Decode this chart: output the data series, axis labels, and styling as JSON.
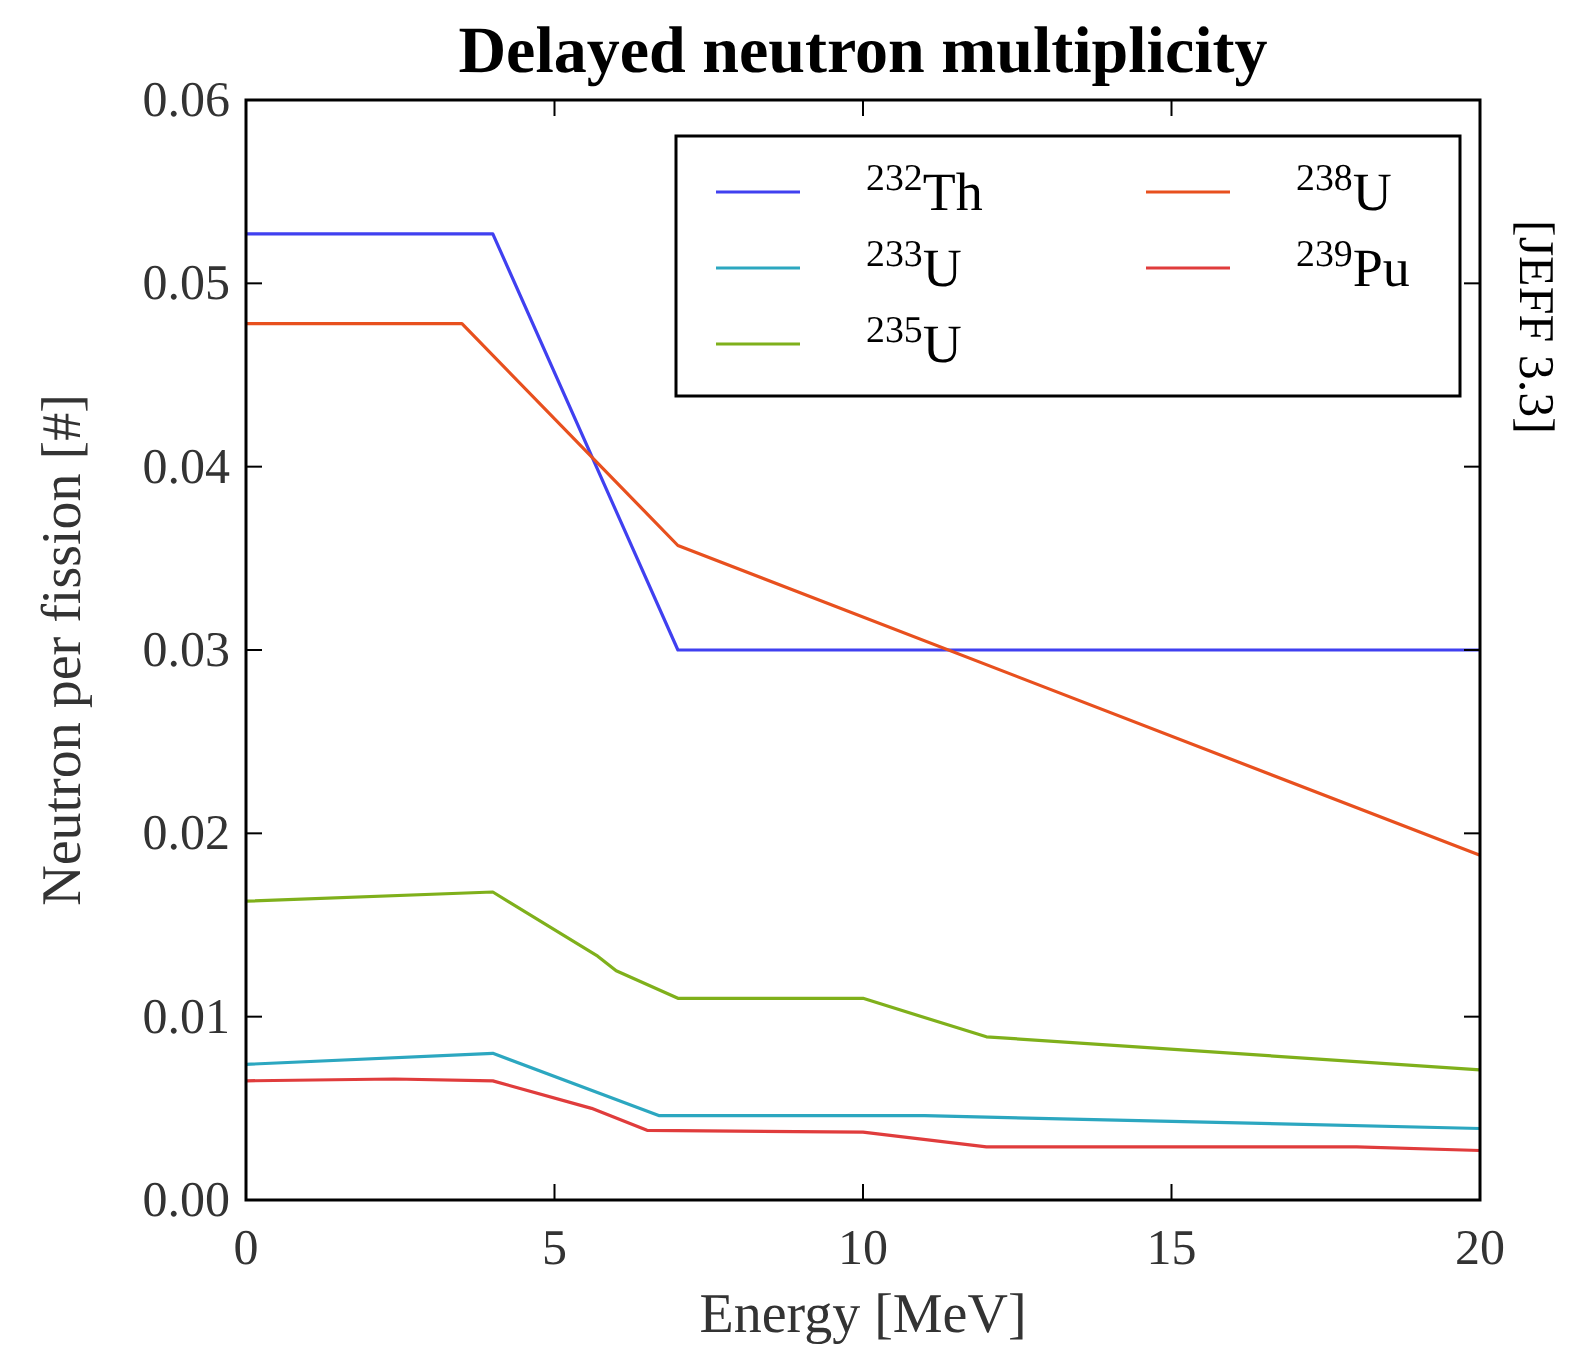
{
  "chart_data": {
    "type": "line",
    "title": "Delayed neutron multiplicity",
    "xlabel": "Energy [MeV]",
    "ylabel": "Neutron per fission [#]",
    "annotations": [
      "[JEFF 3.3]"
    ],
    "xlim": [
      0,
      20
    ],
    "xticks": [
      0,
      5,
      10,
      15,
      20
    ],
    "ylim": [
      0,
      0.06
    ],
    "yticks": [
      {
        "value": 0,
        "label": "0.00"
      },
      {
        "value": 0.01,
        "label": "0.01"
      },
      {
        "value": 0.02,
        "label": "0.02"
      },
      {
        "value": 0.03,
        "label": "0.03"
      },
      {
        "value": 0.04,
        "label": "0.04"
      },
      {
        "value": 0.05,
        "label": "0.05"
      },
      {
        "value": 0.06,
        "label": "0.06"
      }
    ],
    "grid": false,
    "legend": "top right",
    "marker": "none",
    "line_style": "solid",
    "series": [
      {
        "name": "$^{232}$Th",
        "color": "#4040f0",
        "x": [
          0,
          4,
          7,
          20
        ],
        "values": [
          0.0527,
          0.0527,
          0.03,
          0.03
        ]
      },
      {
        "name": "$^{233}$U",
        "color": "#2ca7c0",
        "x": [
          0,
          4,
          6.7,
          11,
          20
        ],
        "values": [
          0.0074,
          0.008,
          0.0046,
          0.0046,
          0.0039
        ]
      },
      {
        "name": "$^{235}$U",
        "color": "#7fb01b",
        "x": [
          0,
          4,
          5.7,
          6,
          7,
          10,
          12,
          20
        ],
        "values": [
          0.0163,
          0.0168,
          0.0133,
          0.0125,
          0.011,
          0.011,
          0.0089,
          0.0071
        ]
      },
      {
        "name": "$^{238}$U",
        "color": "#e8501e",
        "x": [
          0,
          3.5,
          7,
          20
        ],
        "values": [
          0.0478,
          0.0478,
          0.0357,
          0.0188
        ]
      },
      {
        "name": "$^{239}$Pu",
        "color": "#e03c3c",
        "x": [
          0,
          2.4,
          4,
          5.6,
          6.5,
          10,
          12,
          18,
          20
        ],
        "values": [
          0.0065,
          0.0066,
          0.0065,
          0.005,
          0.0038,
          0.0037,
          0.0029,
          0.0029,
          0.0027
        ]
      }
    ]
  }
}
